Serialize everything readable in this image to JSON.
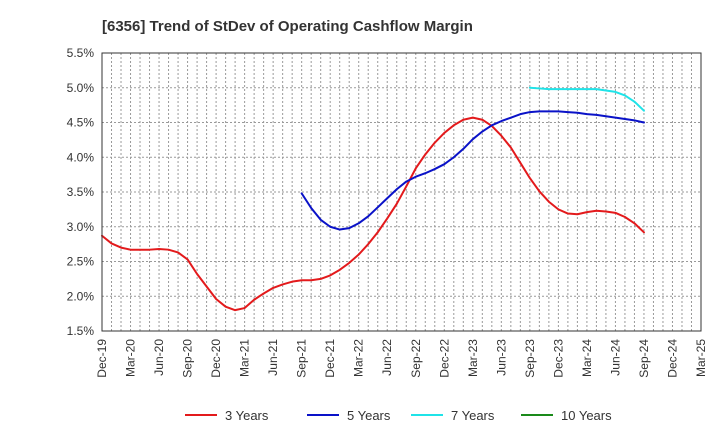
{
  "chart_data": {
    "type": "line",
    "title": "[6356]  Trend of StDev of Operating Cashflow Margin",
    "xlabel": "",
    "ylabel": "",
    "ylim": [
      1.5,
      5.5
    ],
    "y_ticks": [
      "1.5%",
      "2.0%",
      "2.5%",
      "3.0%",
      "3.5%",
      "4.0%",
      "4.5%",
      "5.0%",
      "5.5%"
    ],
    "y_tick_values": [
      1.5,
      2.0,
      2.5,
      3.0,
      3.5,
      4.0,
      4.5,
      5.0,
      5.5
    ],
    "x_ticks": [
      "Dec-19",
      "Mar-20",
      "Jun-20",
      "Sep-20",
      "Dec-20",
      "Mar-21",
      "Jun-21",
      "Sep-21",
      "Dec-21",
      "Mar-22",
      "Jun-22",
      "Sep-22",
      "Dec-22",
      "Mar-23",
      "Jun-23",
      "Sep-23",
      "Dec-23",
      "Mar-24",
      "Jun-24",
      "Sep-24",
      "Dec-24",
      "Mar-25"
    ],
    "x_unit": "month",
    "x_range": [
      "Dec-19",
      "Mar-25"
    ],
    "grid": true,
    "legend_position": "bottom",
    "series": [
      {
        "name": "3 Years",
        "color": "#e31a1c",
        "points": [
          [
            "Dec-19",
            2.87
          ],
          [
            "Jan-20",
            2.76
          ],
          [
            "Feb-20",
            2.7
          ],
          [
            "Mar-20",
            2.67
          ],
          [
            "Apr-20",
            2.67
          ],
          [
            "May-20",
            2.67
          ],
          [
            "Jun-20",
            2.68
          ],
          [
            "Jul-20",
            2.67
          ],
          [
            "Aug-20",
            2.63
          ],
          [
            "Sep-20",
            2.53
          ],
          [
            "Oct-20",
            2.32
          ],
          [
            "Nov-20",
            2.14
          ],
          [
            "Dec-20",
            1.96
          ],
          [
            "Jan-21",
            1.85
          ],
          [
            "Feb-21",
            1.8
          ],
          [
            "Mar-21",
            1.83
          ],
          [
            "Apr-21",
            1.95
          ],
          [
            "May-21",
            2.04
          ],
          [
            "Jun-21",
            2.12
          ],
          [
            "Jul-21",
            2.17
          ],
          [
            "Aug-21",
            2.21
          ],
          [
            "Sep-21",
            2.23
          ],
          [
            "Oct-21",
            2.23
          ],
          [
            "Nov-21",
            2.25
          ],
          [
            "Dec-21",
            2.3
          ],
          [
            "Jan-22",
            2.38
          ],
          [
            "Feb-22",
            2.48
          ],
          [
            "Mar-22",
            2.6
          ],
          [
            "Apr-22",
            2.75
          ],
          [
            "May-22",
            2.92
          ],
          [
            "Jun-22",
            3.12
          ],
          [
            "Jul-22",
            3.33
          ],
          [
            "Aug-22",
            3.58
          ],
          [
            "Sep-22",
            3.84
          ],
          [
            "Oct-22",
            4.04
          ],
          [
            "Nov-22",
            4.21
          ],
          [
            "Dec-22",
            4.35
          ],
          [
            "Jan-23",
            4.46
          ],
          [
            "Feb-23",
            4.54
          ],
          [
            "Mar-23",
            4.57
          ],
          [
            "Apr-23",
            4.54
          ],
          [
            "May-23",
            4.45
          ],
          [
            "Jun-23",
            4.31
          ],
          [
            "Jul-23",
            4.14
          ],
          [
            "Aug-23",
            3.92
          ],
          [
            "Sep-23",
            3.7
          ],
          [
            "Oct-23",
            3.51
          ],
          [
            "Nov-23",
            3.36
          ],
          [
            "Dec-23",
            3.25
          ],
          [
            "Jan-24",
            3.19
          ],
          [
            "Feb-24",
            3.18
          ],
          [
            "Mar-24",
            3.21
          ],
          [
            "Apr-24",
            3.23
          ],
          [
            "May-24",
            3.22
          ],
          [
            "Jun-24",
            3.2
          ],
          [
            "Jul-24",
            3.14
          ],
          [
            "Aug-24",
            3.05
          ],
          [
            "Sep-24",
            2.92
          ]
        ]
      },
      {
        "name": "5 Years",
        "color": "#0a12c8",
        "points": [
          [
            "Sep-21",
            3.48
          ],
          [
            "Oct-21",
            3.27
          ],
          [
            "Nov-21",
            3.1
          ],
          [
            "Dec-21",
            3.0
          ],
          [
            "Jan-22",
            2.96
          ],
          [
            "Feb-22",
            2.98
          ],
          [
            "Mar-22",
            3.05
          ],
          [
            "Apr-22",
            3.15
          ],
          [
            "May-22",
            3.28
          ],
          [
            "Jun-22",
            3.41
          ],
          [
            "Jul-22",
            3.54
          ],
          [
            "Aug-22",
            3.65
          ],
          [
            "Sep-22",
            3.72
          ],
          [
            "Oct-22",
            3.77
          ],
          [
            "Nov-22",
            3.83
          ],
          [
            "Dec-22",
            3.9
          ],
          [
            "Jan-23",
            4.0
          ],
          [
            "Feb-23",
            4.12
          ],
          [
            "Mar-23",
            4.26
          ],
          [
            "Apr-23",
            4.37
          ],
          [
            "May-23",
            4.46
          ],
          [
            "Jun-23",
            4.52
          ],
          [
            "Jul-23",
            4.57
          ],
          [
            "Aug-23",
            4.62
          ],
          [
            "Sep-23",
            4.65
          ],
          [
            "Oct-23",
            4.66
          ],
          [
            "Nov-23",
            4.66
          ],
          [
            "Dec-23",
            4.66
          ],
          [
            "Jan-24",
            4.65
          ],
          [
            "Feb-24",
            4.64
          ],
          [
            "Mar-24",
            4.62
          ],
          [
            "Apr-24",
            4.61
          ],
          [
            "May-24",
            4.59
          ],
          [
            "Jun-24",
            4.57
          ],
          [
            "Jul-24",
            4.55
          ],
          [
            "Aug-24",
            4.53
          ],
          [
            "Sep-24",
            4.5
          ]
        ]
      },
      {
        "name": "7 Years",
        "color": "#1fe3e8",
        "points": [
          [
            "Sep-23",
            5.0
          ],
          [
            "Oct-23",
            4.99
          ],
          [
            "Nov-23",
            4.98
          ],
          [
            "Dec-23",
            4.98
          ],
          [
            "Jan-24",
            4.98
          ],
          [
            "Feb-24",
            4.98
          ],
          [
            "Mar-24",
            4.98
          ],
          [
            "Apr-24",
            4.98
          ],
          [
            "May-24",
            4.96
          ],
          [
            "Jun-24",
            4.94
          ],
          [
            "Jul-24",
            4.89
          ],
          [
            "Aug-24",
            4.8
          ],
          [
            "Sep-24",
            4.67
          ]
        ]
      },
      {
        "name": "10 Years",
        "color": "#1a8a1a",
        "points": []
      }
    ]
  }
}
